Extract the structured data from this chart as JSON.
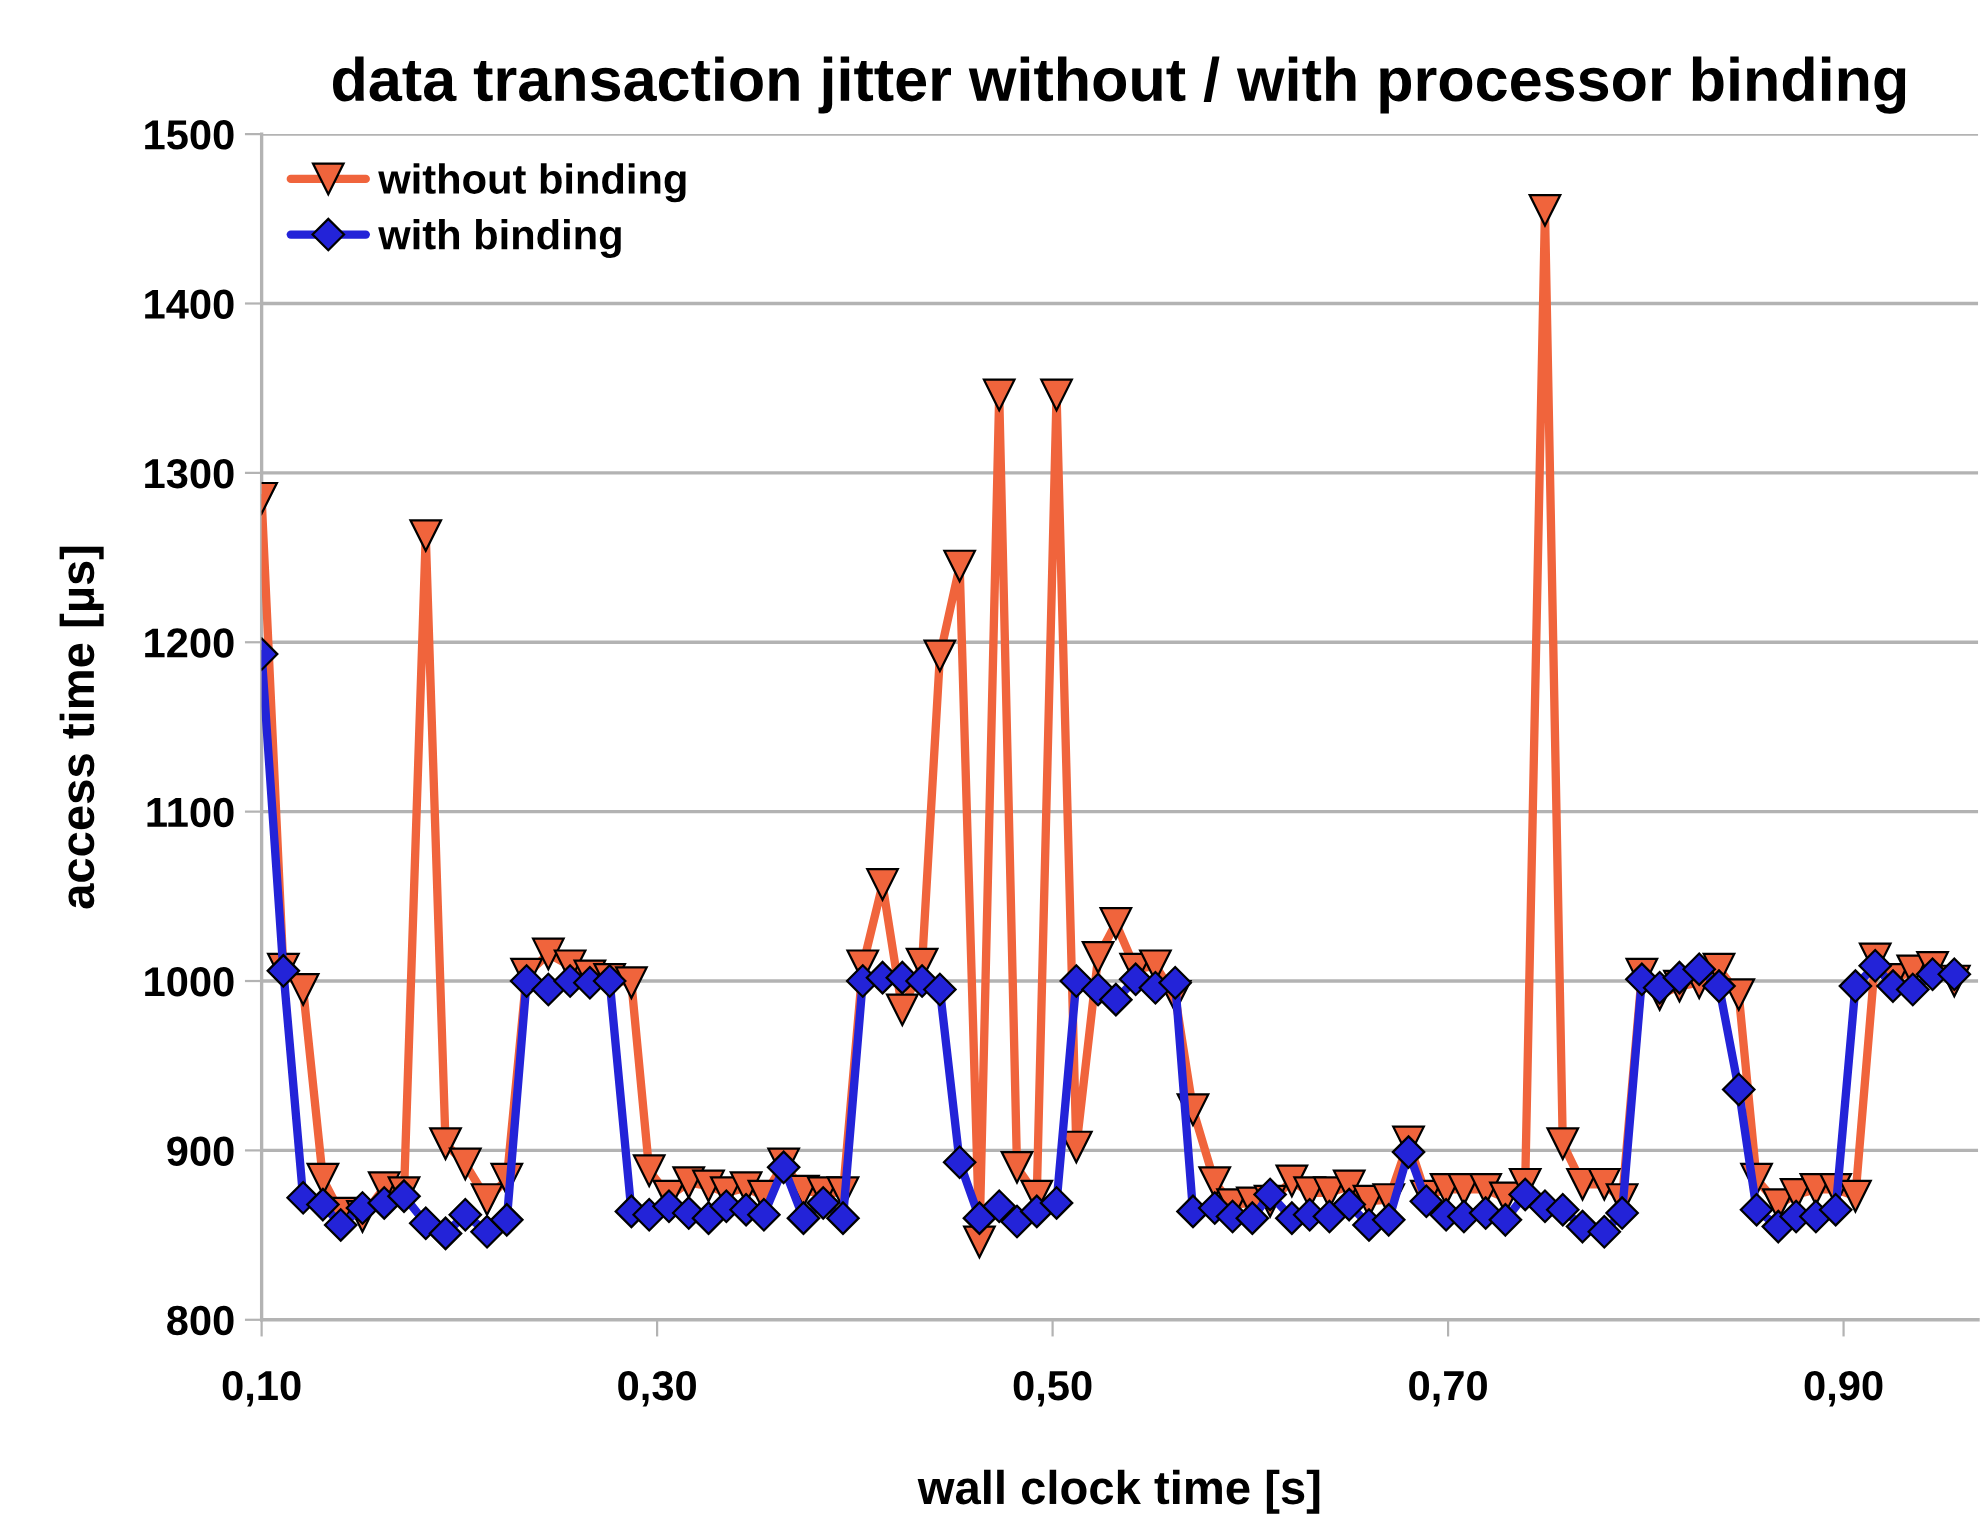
{
  "chart_data": {
    "type": "line",
    "title": "data transaction jitter without / with processor binding",
    "xlabel": "wall clock time [s]",
    "ylabel": "access time [µs]",
    "x": [
      0.1,
      0.111,
      0.121,
      0.131,
      0.14,
      0.151,
      0.162,
      0.172,
      0.183,
      0.193,
      0.203,
      0.214,
      0.224,
      0.234,
      0.245,
      0.256,
      0.266,
      0.276,
      0.287,
      0.296,
      0.306,
      0.316,
      0.326,
      0.335,
      0.345,
      0.354,
      0.364,
      0.374,
      0.384,
      0.394,
      0.404,
      0.414,
      0.424,
      0.434,
      0.443,
      0.453,
      0.463,
      0.473,
      0.482,
      0.492,
      0.502,
      0.512,
      0.523,
      0.532,
      0.542,
      0.552,
      0.562,
      0.571,
      0.582,
      0.591,
      0.601,
      0.61,
      0.621,
      0.63,
      0.64,
      0.65,
      0.66,
      0.67,
      0.68,
      0.689,
      0.699,
      0.708,
      0.719,
      0.729,
      0.739,
      0.749,
      0.758,
      0.768,
      0.779,
      0.788,
      0.798,
      0.807,
      0.817,
      0.827,
      0.837,
      0.847,
      0.856,
      0.867,
      0.876,
      0.886,
      0.896,
      0.906,
      0.916,
      0.925,
      0.935,
      0.945,
      0.956
    ],
    "series": [
      {
        "name": "without binding",
        "color": "#f0643c",
        "marker": "triangle",
        "values": [
          1285,
          1007,
          995,
          883,
          863,
          861,
          878,
          875,
          1263,
          904,
          892,
          871,
          883,
          1004,
          1016,
          1009,
          1003,
          1001,
          999,
          888,
          873,
          881,
          879,
          875,
          878,
          873,
          892,
          876,
          875,
          875,
          1009,
          1057,
          983,
          1010,
          1192,
          1245,
          846,
          1346,
          890,
          873,
          1346,
          902,
          1014,
          1034,
          1007,
          1009,
          991,
          924,
          881,
          868,
          869,
          870,
          882,
          875,
          875,
          879,
          870,
          871,
          905,
          873,
          877,
          877,
          877,
          872,
          880,
          1455,
          904,
          880,
          880,
          871,
          1004,
          992,
          997,
          999,
          1007,
          992,
          883,
          868,
          874,
          877,
          877,
          873,
          1013,
          1001,
          1006,
          1008,
          1000
        ]
      },
      {
        "name": "with binding",
        "color": "#2323d8",
        "marker": "diamond",
        "values": [
          1193,
          1006,
          872,
          868,
          856,
          866,
          869,
          873,
          857,
          851,
          862,
          852,
          859,
          1000,
          995,
          1000,
          999,
          1000,
          864,
          862,
          867,
          863,
          860,
          867,
          865,
          862,
          890,
          860,
          869,
          860,
          1000,
          1002,
          1002,
          1000,
          995,
          893,
          860,
          867,
          858,
          864,
          869,
          1000,
          995,
          989,
          1001,
          996,
          999,
          864,
          866,
          861,
          860,
          874,
          860,
          862,
          861,
          868,
          856,
          859,
          899,
          870,
          862,
          861,
          863,
          859,
          874,
          867,
          865,
          855,
          852,
          863,
          1001,
          996,
          1002,
          1007,
          997,
          936,
          865,
          855,
          861,
          861,
          865,
          997,
          1009,
          997,
          995,
          1004,
          1004
        ]
      }
    ],
    "xlim": [
      0.1,
      0.968
    ],
    "xticks": [
      {
        "value": 0.1,
        "label": "0,10"
      },
      {
        "value": 0.3,
        "label": "0,30"
      },
      {
        "value": 0.5,
        "label": "0,50"
      },
      {
        "value": 0.7,
        "label": "0,70"
      },
      {
        "value": 0.9,
        "label": "0,90"
      }
    ],
    "ylim": [
      800,
      1500
    ],
    "yticks": [
      800,
      900,
      1000,
      1100,
      1200,
      1300,
      1400,
      1500
    ],
    "grid": "y",
    "legend": "top left",
    "line_style": "solid"
  }
}
